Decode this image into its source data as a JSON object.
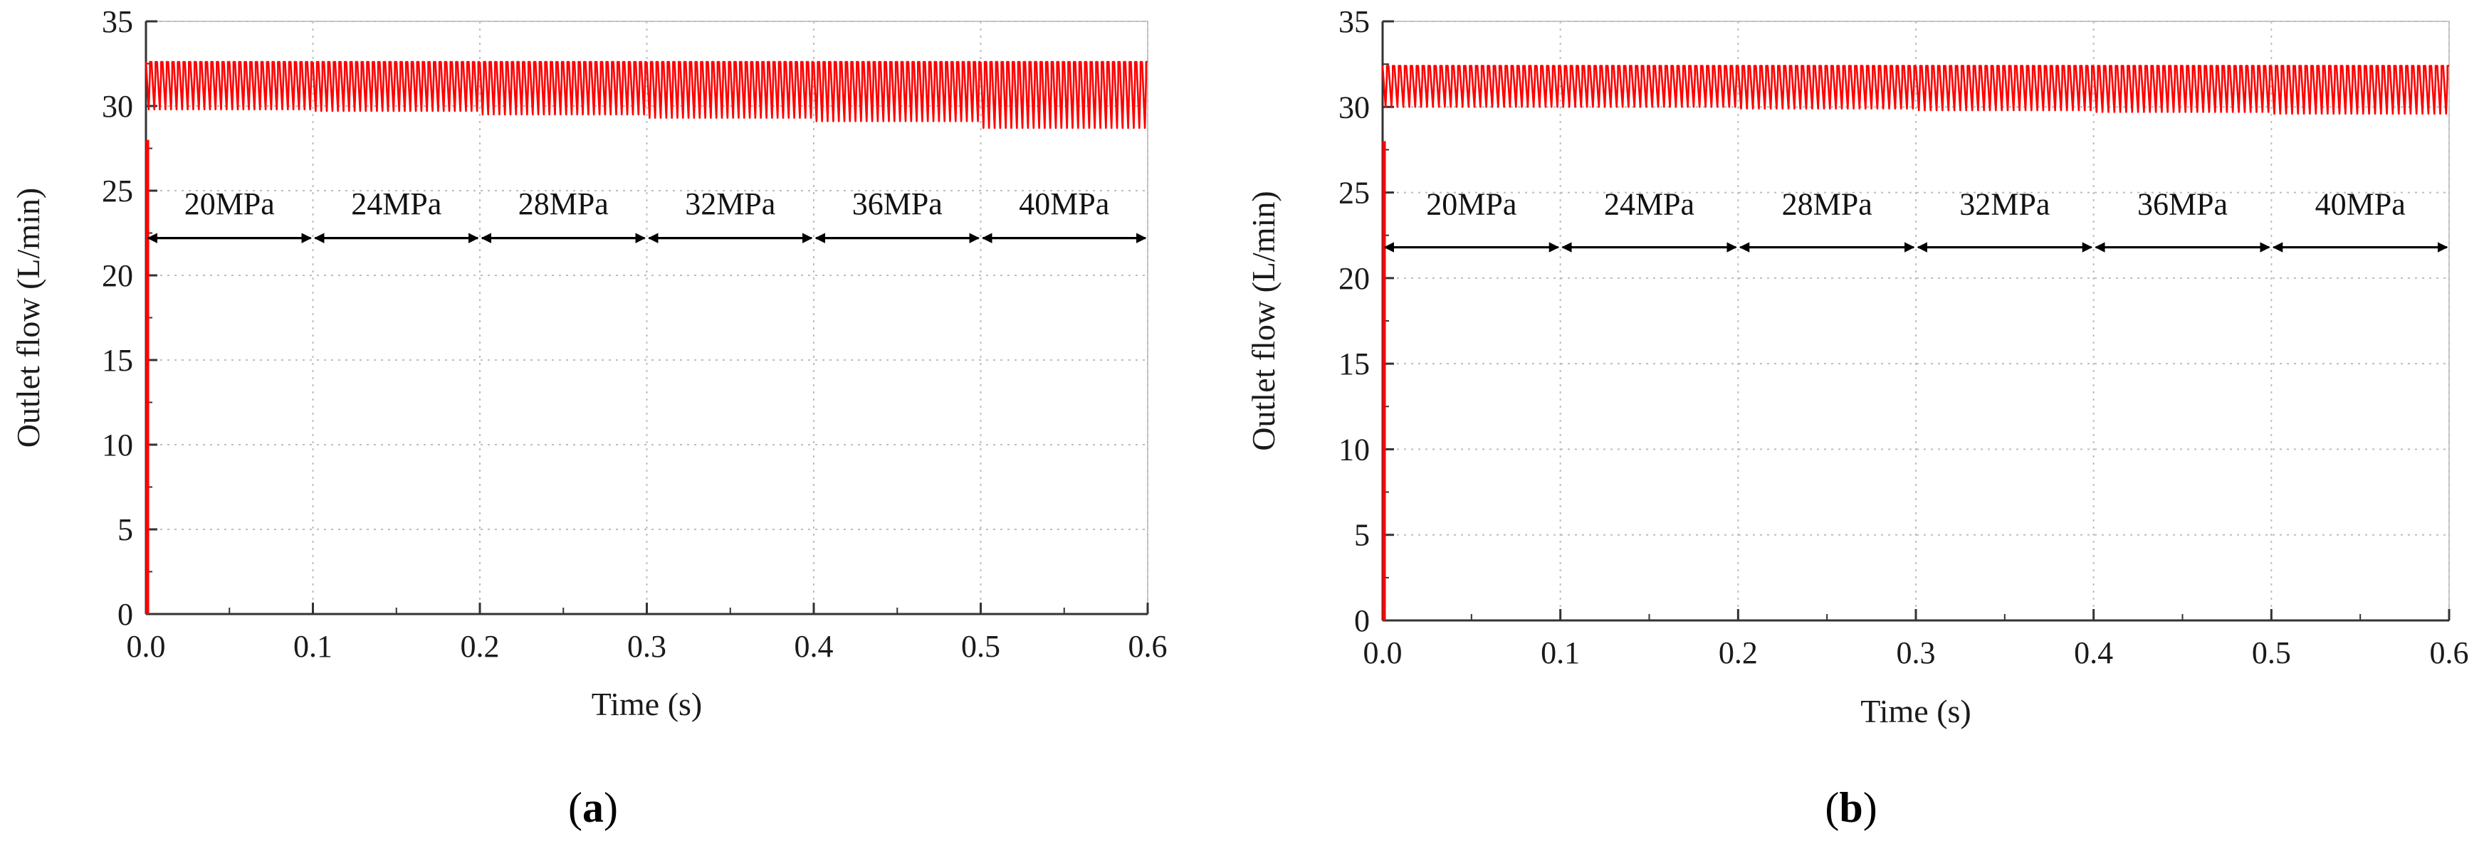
{
  "colors": {
    "series": "#ff0000",
    "grid": "#bdbdbd",
    "axis": "#333333",
    "frame": "#c8c8c8",
    "arrow": "#000000"
  },
  "chart_data": [
    {
      "type": "line",
      "panel_label": {
        "open": "(",
        "letter": "a",
        "close": ")"
      },
      "title": "",
      "xlabel": "Time (s)",
      "ylabel": "Outlet flow (L/min)",
      "xlim": [
        0,
        0.6
      ],
      "ylim": [
        0,
        35
      ],
      "xticks": [
        0.0,
        0.1,
        0.2,
        0.3,
        0.4,
        0.5,
        0.6
      ],
      "xtick_labels": [
        "0.0",
        "0.1",
        "0.2",
        "0.3",
        "0.4",
        "0.5",
        "0.6"
      ],
      "yticks": [
        0,
        5,
        10,
        15,
        20,
        25,
        30,
        35
      ],
      "ytick_labels": [
        "0",
        "5",
        "10",
        "15",
        "20",
        "25",
        "30",
        "35"
      ],
      "grid": true,
      "series": [
        {
          "name": "Outlet flow",
          "startup": {
            "from": 0,
            "to": 28
          },
          "ripple": {
            "cycles_per_segment": 30,
            "segments": [
              {
                "max": 32.6,
                "min": 29.8
              },
              {
                "max": 32.6,
                "min": 29.7
              },
              {
                "max": 32.6,
                "min": 29.5
              },
              {
                "max": 32.6,
                "min": 29.3
              },
              {
                "max": 32.6,
                "min": 29.1
              },
              {
                "max": 32.6,
                "min": 28.7
              }
            ]
          }
        }
      ],
      "annotations": {
        "arrow_y": 22.2,
        "label_y": 24.2,
        "segments": [
          {
            "label": "20MPa",
            "from": 0.0,
            "to": 0.1
          },
          {
            "label": "24MPa",
            "from": 0.1,
            "to": 0.2
          },
          {
            "label": "28MPa",
            "from": 0.2,
            "to": 0.3
          },
          {
            "label": "32MPa",
            "from": 0.3,
            "to": 0.4
          },
          {
            "label": "36MPa",
            "from": 0.4,
            "to": 0.5
          },
          {
            "label": "40MPa",
            "from": 0.5,
            "to": 0.6
          }
        ]
      }
    },
    {
      "type": "line",
      "panel_label": {
        "open": "(",
        "letter": "b",
        "close": ")"
      },
      "title": "",
      "xlabel": "Time (s)",
      "ylabel": "Outlet flow (L/min)",
      "xlim": [
        0,
        0.6
      ],
      "ylim": [
        0,
        35
      ],
      "xticks": [
        0.0,
        0.1,
        0.2,
        0.3,
        0.4,
        0.5,
        0.6
      ],
      "xtick_labels": [
        "0.0",
        "0.1",
        "0.2",
        "0.3",
        "0.4",
        "0.5",
        "0.6"
      ],
      "yticks": [
        0,
        5,
        10,
        15,
        20,
        25,
        30,
        35
      ],
      "ytick_labels": [
        "0",
        "5",
        "10",
        "15",
        "20",
        "25",
        "30",
        "35"
      ],
      "grid": true,
      "series": [
        {
          "name": "Outlet flow",
          "startup": {
            "from": 0,
            "to": 28
          },
          "ripple": {
            "cycles_per_segment": 30,
            "segments": [
              {
                "max": 32.4,
                "min": 30.0
              },
              {
                "max": 32.4,
                "min": 30.0
              },
              {
                "max": 32.4,
                "min": 29.9
              },
              {
                "max": 32.4,
                "min": 29.8
              },
              {
                "max": 32.4,
                "min": 29.7
              },
              {
                "max": 32.4,
                "min": 29.6
              }
            ]
          }
        }
      ],
      "annotations": {
        "arrow_y": 21.8,
        "label_y": 24.3,
        "segments": [
          {
            "label": "20MPa",
            "from": 0.0,
            "to": 0.1
          },
          {
            "label": "24MPa",
            "from": 0.1,
            "to": 0.2
          },
          {
            "label": "28MPa",
            "from": 0.2,
            "to": 0.3
          },
          {
            "label": "32MPa",
            "from": 0.3,
            "to": 0.4
          },
          {
            "label": "36MPa",
            "from": 0.4,
            "to": 0.5
          },
          {
            "label": "40MPa",
            "from": 0.5,
            "to": 0.6
          }
        ]
      }
    }
  ]
}
